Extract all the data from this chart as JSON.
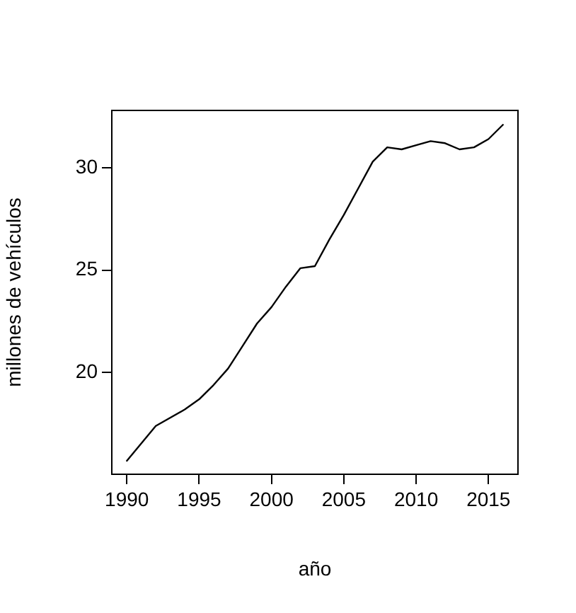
{
  "chart_data": {
    "type": "line",
    "xlabel": "año",
    "ylabel": "millones de vehículos",
    "x": [
      1990,
      1992,
      1994,
      1995,
      1996,
      1997,
      1998,
      1999,
      2000,
      2001,
      2002,
      2003,
      2004,
      2005,
      2006,
      2007,
      2008,
      2009,
      2010,
      2011,
      2012,
      2013,
      2014,
      2015,
      2016
    ],
    "series": [
      {
        "color": "#000000",
        "values": [
          15.7,
          17.4,
          18.2,
          18.7,
          19.4,
          20.2,
          21.3,
          22.4,
          23.2,
          24.2,
          25.1,
          25.2,
          26.5,
          27.7,
          29.0,
          30.3,
          31.0,
          30.9,
          31.1,
          31.3,
          31.2,
          30.9,
          31.0,
          31.4,
          32.1
        ]
      }
    ],
    "xlim": [
      1988.96,
      2017.04
    ],
    "xticks": [
      1990,
      1995,
      2000,
      2005,
      2010,
      2015
    ],
    "ylim": [
      15.04,
      32.8
    ],
    "yticks": [
      20,
      25,
      30
    ],
    "grid": false,
    "legend": false,
    "marker": "none",
    "line_style": "solid"
  }
}
